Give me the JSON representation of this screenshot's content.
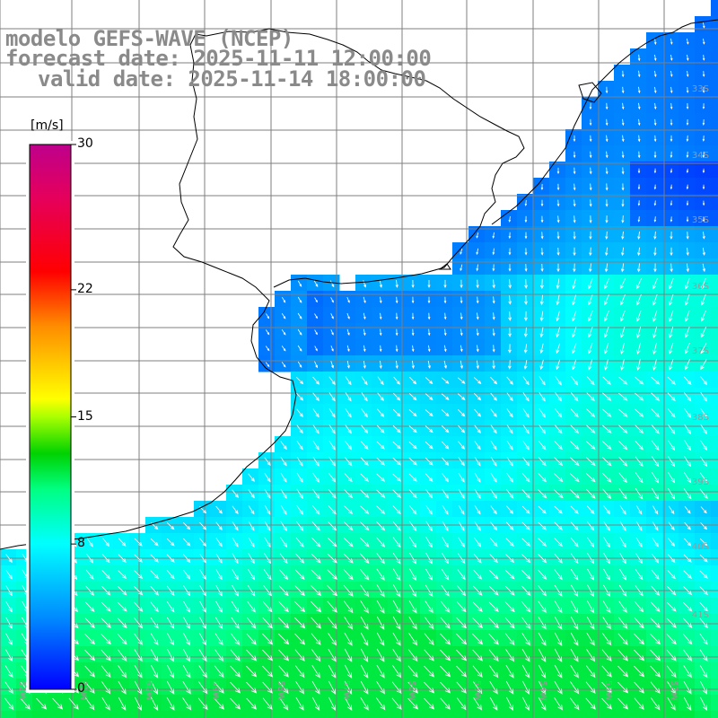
{
  "title": {
    "model": "modelo GEFS-WAVE (NCEP)",
    "forecast": "forecast date: 2025-11-11 12:00:00",
    "valid": "valid date: 2025-11-14 18:00:00"
  },
  "colorbar": {
    "unit": "[m/s]",
    "ticks": [
      {
        "label": "30",
        "value": 30
      },
      {
        "label": "22",
        "value": 22
      },
      {
        "label": "15",
        "value": 15
      },
      {
        "label": "8",
        "value": 8
      },
      {
        "label": "0",
        "value": 0
      }
    ],
    "range": [
      0,
      30
    ],
    "colors": [
      "#0000ff",
      "#00a0ff",
      "#00ffff",
      "#00ff80",
      "#00d000",
      "#a0ff00",
      "#ffff00",
      "#ff9000",
      "#ff0000",
      "#e00060",
      "#c00080"
    ]
  },
  "grid": {
    "lat_labels": [
      "33S",
      "34S",
      "35S",
      "36S",
      "37S",
      "38S",
      "39S",
      "40S",
      "41S"
    ],
    "lon_labels": [
      "62W",
      "61W",
      "60W",
      "59W",
      "58W",
      "57W",
      "56W",
      "55W",
      "54W",
      "53W",
      "52W"
    ]
  },
  "colors": {
    "land": "#ffffff",
    "coast": "#000000",
    "gridline": "#7f7f7f",
    "text_gray": "#8a8a8a"
  }
}
